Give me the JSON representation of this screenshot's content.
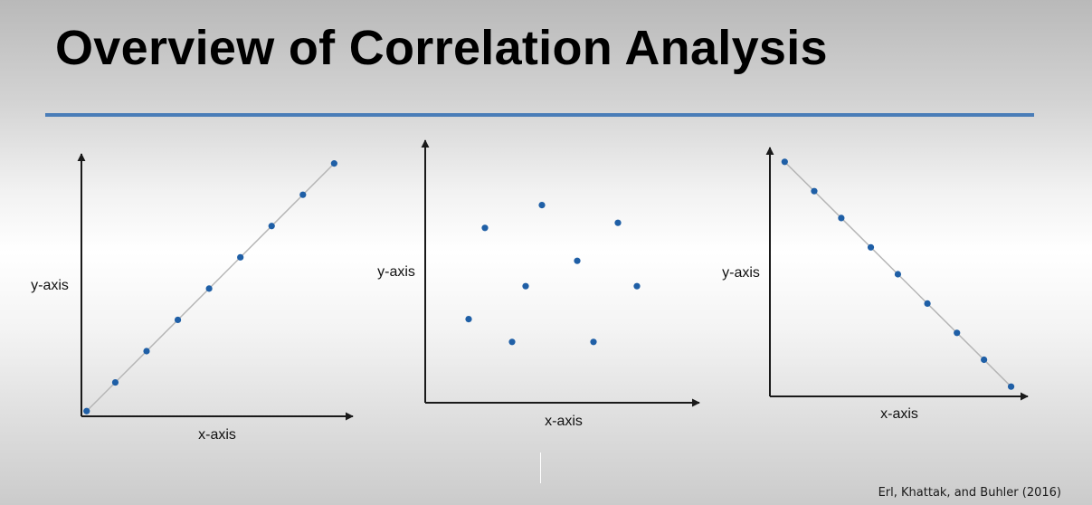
{
  "slide": {
    "title": "Overview of Correlation Analysis",
    "citation": "Erl, Khattak, and Buhler (2016)"
  },
  "colors": {
    "rule": "#4a7db8",
    "point": "#1f5fa6",
    "fit_line": "#b5b5b5",
    "axis": "#1a1a1a"
  },
  "chart_data": [
    {
      "type": "scatter",
      "title": "",
      "xlabel": "x-axis",
      "ylabel": "y-axis",
      "xlim": [
        0,
        10
      ],
      "ylim": [
        0,
        10
      ],
      "fit_line": true,
      "points": [
        {
          "x": 0.2,
          "y": 0.2
        },
        {
          "x": 1.3,
          "y": 1.3
        },
        {
          "x": 2.5,
          "y": 2.5
        },
        {
          "x": 3.7,
          "y": 3.7
        },
        {
          "x": 4.9,
          "y": 4.9
        },
        {
          "x": 6.1,
          "y": 6.1
        },
        {
          "x": 7.3,
          "y": 7.3
        },
        {
          "x": 8.5,
          "y": 8.5
        },
        {
          "x": 9.7,
          "y": 9.7
        }
      ]
    },
    {
      "type": "scatter",
      "title": "",
      "xlabel": "x-axis",
      "ylabel": "y-axis",
      "xlim": [
        0,
        10
      ],
      "ylim": [
        0,
        10
      ],
      "fit_line": false,
      "points": [
        {
          "x": 1.6,
          "y": 3.3
        },
        {
          "x": 2.2,
          "y": 6.9
        },
        {
          "x": 3.2,
          "y": 2.4
        },
        {
          "x": 3.7,
          "y": 4.6
        },
        {
          "x": 4.3,
          "y": 7.8
        },
        {
          "x": 5.6,
          "y": 5.6
        },
        {
          "x": 6.2,
          "y": 2.4
        },
        {
          "x": 7.1,
          "y": 7.1
        },
        {
          "x": 7.8,
          "y": 4.6
        }
      ]
    },
    {
      "type": "scatter",
      "title": "",
      "xlabel": "x-axis",
      "ylabel": "y-axis",
      "xlim": [
        0,
        10
      ],
      "ylim": [
        0,
        10
      ],
      "fit_line": true,
      "points": [
        {
          "x": 0.6,
          "y": 9.6
        },
        {
          "x": 1.8,
          "y": 8.4
        },
        {
          "x": 2.9,
          "y": 7.3
        },
        {
          "x": 4.1,
          "y": 6.1
        },
        {
          "x": 5.2,
          "y": 5.0
        },
        {
          "x": 6.4,
          "y": 3.8
        },
        {
          "x": 7.6,
          "y": 2.6
        },
        {
          "x": 8.7,
          "y": 1.5
        },
        {
          "x": 9.8,
          "y": 0.4
        }
      ]
    }
  ]
}
